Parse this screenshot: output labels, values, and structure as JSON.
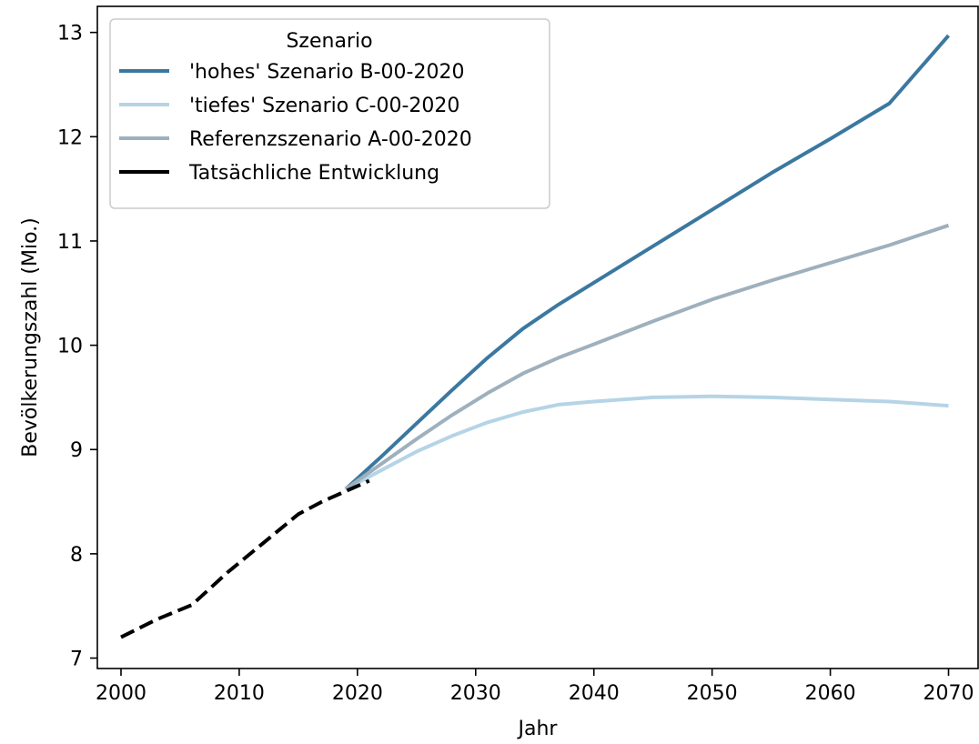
{
  "chart_data": {
    "type": "line",
    "title": "",
    "xlabel": "Jahr",
    "ylabel": "Bevölkerungszahl (Mio.)",
    "xlim": [
      1998,
      2072.5
    ],
    "ylim": [
      6.9,
      13.25
    ],
    "xticks": [
      2000,
      2010,
      2020,
      2030,
      2040,
      2050,
      2060,
      2070
    ],
    "yticks": [
      7,
      8,
      9,
      10,
      11,
      12,
      13
    ],
    "grid": false,
    "legend": {
      "title": "Szenario",
      "placement": "upper-left"
    },
    "series": [
      {
        "name": "'hohes' Szenario B-00-2020",
        "color": "#3b78a0",
        "style": "solid",
        "x": [
          2019,
          2022,
          2025,
          2028,
          2031,
          2034,
          2037,
          2040,
          2045,
          2050,
          2055,
          2060,
          2065,
          2070
        ],
        "y": [
          8.62,
          8.93,
          9.25,
          9.57,
          9.88,
          10.16,
          10.39,
          10.6,
          10.95,
          11.3,
          11.65,
          11.98,
          12.32,
          12.97
        ]
      },
      {
        "name": "'tiefes' Szenario C-00-2020",
        "color": "#b5d4e6",
        "style": "solid",
        "x": [
          2019,
          2022,
          2025,
          2028,
          2031,
          2034,
          2037,
          2040,
          2045,
          2050,
          2055,
          2060,
          2065,
          2070
        ],
        "y": [
          8.62,
          8.8,
          8.98,
          9.13,
          9.26,
          9.36,
          9.43,
          9.46,
          9.5,
          9.51,
          9.5,
          9.48,
          9.46,
          9.42
        ]
      },
      {
        "name": "Referenzszenario A-00-2020",
        "color": "#9eb0bd",
        "style": "solid",
        "x": [
          2019,
          2022,
          2025,
          2028,
          2031,
          2034,
          2037,
          2040,
          2045,
          2050,
          2055,
          2060,
          2065,
          2070
        ],
        "y": [
          8.62,
          8.86,
          9.1,
          9.33,
          9.54,
          9.73,
          9.88,
          10.01,
          10.23,
          10.44,
          10.62,
          10.79,
          10.96,
          11.15
        ]
      },
      {
        "name": "Tatsächliche Entwicklung",
        "color": "#000000",
        "style": "dashed",
        "x": [
          2000,
          2003,
          2006,
          2009,
          2012,
          2015,
          2017,
          2019,
          2021
        ],
        "y": [
          7.2,
          7.37,
          7.51,
          7.82,
          8.1,
          8.38,
          8.5,
          8.6,
          8.7
        ]
      }
    ]
  }
}
